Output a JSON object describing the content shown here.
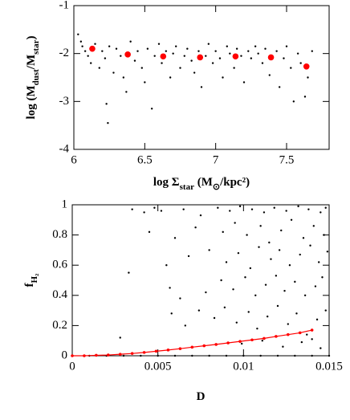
{
  "chart_data": [
    {
      "type": "scatter",
      "xlabel": [
        "log Σ",
        "star",
        " (M",
        "⊙",
        "/kpc²)"
      ],
      "ylabel": [
        "log (M",
        "dust",
        "/M",
        "star",
        ")"
      ],
      "xlim": [
        6,
        7.8
      ],
      "ylim": [
        -4,
        -1
      ],
      "xticks": [
        6,
        6.5,
        7,
        7.5
      ],
      "yticks": [
        -4,
        -3,
        -2,
        -1
      ],
      "series": [
        {
          "color": "#000000",
          "mode": "points",
          "x": [
            6.03,
            6.05,
            6.06,
            6.08,
            6.1,
            6.12,
            6.15,
            6.18,
            6.2,
            6.22,
            6.25,
            6.28,
            6.3,
            6.33,
            6.35,
            6.37,
            6.4,
            6.43,
            6.45,
            6.48,
            6.5,
            6.52,
            6.55,
            6.57,
            6.6,
            6.62,
            6.65,
            6.68,
            6.7,
            6.72,
            6.75,
            6.78,
            6.8,
            6.83,
            6.85,
            6.88,
            6.9,
            6.93,
            6.95,
            6.98,
            7.0,
            7.03,
            7.05,
            7.08,
            7.1,
            7.13,
            7.15,
            7.18,
            7.2,
            7.23,
            7.25,
            7.28,
            7.3,
            7.33,
            7.35,
            7.38,
            7.4,
            7.43,
            7.45,
            7.48,
            7.5,
            7.53,
            7.55,
            7.58,
            7.6,
            7.63,
            7.65,
            7.68,
            6.24,
            6.23
          ],
          "values": [
            -1.6,
            -1.75,
            -1.85,
            -1.95,
            -2.05,
            -2.2,
            -1.8,
            -2.3,
            -1.95,
            -2.1,
            -1.85,
            -2.4,
            -1.9,
            -2.05,
            -2.5,
            -2.8,
            -1.75,
            -2.15,
            -1.95,
            -2.3,
            -2.6,
            -1.9,
            -3.15,
            -2.05,
            -1.8,
            -2.2,
            -1.95,
            -2.5,
            -2.0,
            -1.85,
            -2.3,
            -2.05,
            -1.9,
            -2.15,
            -2.4,
            -1.95,
            -2.7,
            -2.05,
            -1.8,
            -2.2,
            -1.95,
            -2.1,
            -2.5,
            -1.85,
            -2.0,
            -2.3,
            -1.9,
            -2.05,
            -2.6,
            -1.95,
            -2.1,
            -1.85,
            -2.0,
            -2.2,
            -1.9,
            -2.45,
            -2.05,
            -1.95,
            -2.7,
            -2.1,
            -1.85,
            -2.3,
            -3.0,
            -2.0,
            -2.2,
            -2.9,
            -2.5,
            -1.95,
            -3.45,
            -3.05
          ]
        },
        {
          "color": "#ff0000",
          "mode": "big",
          "x": [
            6.13,
            6.38,
            6.63,
            6.89,
            7.14,
            7.39,
            7.64
          ],
          "values": [
            -1.9,
            -2.02,
            -2.06,
            -2.08,
            -2.06,
            -2.08,
            -2.27
          ]
        }
      ]
    },
    {
      "type": "scatter",
      "xlabel": [
        "D"
      ],
      "ylabel": [
        "f",
        "H₂"
      ],
      "xlim": [
        0,
        0.015
      ],
      "ylim": [
        0,
        1
      ],
      "xticks": [
        0,
        0.005,
        0.01,
        0.015
      ],
      "yticks": [
        0,
        0.2,
        0.4,
        0.6,
        0.8,
        1
      ],
      "series": [
        {
          "color": "#000000",
          "mode": "points",
          "x": [
            0.0035,
            0.0042,
            0.0048,
            0.0052,
            0.0065,
            0.0075,
            0.0085,
            0.0092,
            0.0098,
            0.0105,
            0.0112,
            0.0118,
            0.0125,
            0.0132,
            0.0138,
            0.0145,
            0.0148,
            0.0045,
            0.006,
            0.0072,
            0.0088,
            0.0095,
            0.0102,
            0.011,
            0.0115,
            0.0122,
            0.0128,
            0.0135,
            0.0141,
            0.0147,
            0.0033,
            0.0055,
            0.0068,
            0.008,
            0.009,
            0.0097,
            0.0104,
            0.0109,
            0.0116,
            0.0121,
            0.0127,
            0.0133,
            0.0139,
            0.0144,
            0.0149,
            0.0057,
            0.0063,
            0.0078,
            0.0087,
            0.0094,
            0.0101,
            0.0107,
            0.0113,
            0.0119,
            0.0124,
            0.013,
            0.0136,
            0.0142,
            0.0146,
            0.0028,
            0.0058,
            0.0066,
            0.0074,
            0.0083,
            0.0089,
            0.0096,
            0.0103,
            0.0108,
            0.0114,
            0.012,
            0.0126,
            0.0131,
            0.0137,
            0.0143,
            0.0148,
            0.0099,
            0.0111,
            0.0123,
            0.0134,
            0.0145,
            0.014,
            0.001,
            0.002,
            0.003,
            0.004,
            0.005,
            0.006,
            0.007,
            0.008,
            0.009,
            0.01,
            0.011,
            0.012,
            0.013,
            0.014,
            0.015
          ],
          "values": [
            0.97,
            0.95,
            0.98,
            0.96,
            0.97,
            0.93,
            0.98,
            0.96,
            0.99,
            0.97,
            0.95,
            0.98,
            0.96,
            0.99,
            0.97,
            0.95,
            0.98,
            0.82,
            0.78,
            0.85,
            0.82,
            0.88,
            0.8,
            0.86,
            0.75,
            0.83,
            0.9,
            0.78,
            0.86,
            0.8,
            0.55,
            0.6,
            0.66,
            0.7,
            0.62,
            0.68,
            0.58,
            0.72,
            0.64,
            0.7,
            0.6,
            0.67,
            0.73,
            0.62,
            0.69,
            0.45,
            0.38,
            0.42,
            0.5,
            0.44,
            0.52,
            0.4,
            0.47,
            0.53,
            0.43,
            0.49,
            0.4,
            0.46,
            0.52,
            0.12,
            0.28,
            0.2,
            0.3,
            0.25,
            0.32,
            0.22,
            0.29,
            0.18,
            0.26,
            0.33,
            0.21,
            0.28,
            0.14,
            0.24,
            0.3,
            0.08,
            0.1,
            0.06,
            0.09,
            0.05,
            0.11,
            0,
            0,
            0,
            0,
            0,
            0,
            0,
            0,
            0,
            0,
            0,
            0,
            0,
            0,
            0
          ]
        },
        {
          "color": "#ff0000",
          "mode": "line",
          "x": [
            0,
            0.0007,
            0.0014,
            0.0021,
            0.0028,
            0.0035,
            0.0042,
            0.0049,
            0.0056,
            0.0063,
            0.007,
            0.0077,
            0.0084,
            0.0091,
            0.0098,
            0.0105,
            0.0112,
            0.0119,
            0.0126,
            0.0133,
            0.014
          ],
          "values": [
            0,
            0,
            0.003,
            0.005,
            0.01,
            0.015,
            0.022,
            0.03,
            0.038,
            0.047,
            0.057,
            0.066,
            0.075,
            0.085,
            0.095,
            0.105,
            0.115,
            0.128,
            0.14,
            0.152,
            0.17
          ]
        }
      ]
    }
  ]
}
